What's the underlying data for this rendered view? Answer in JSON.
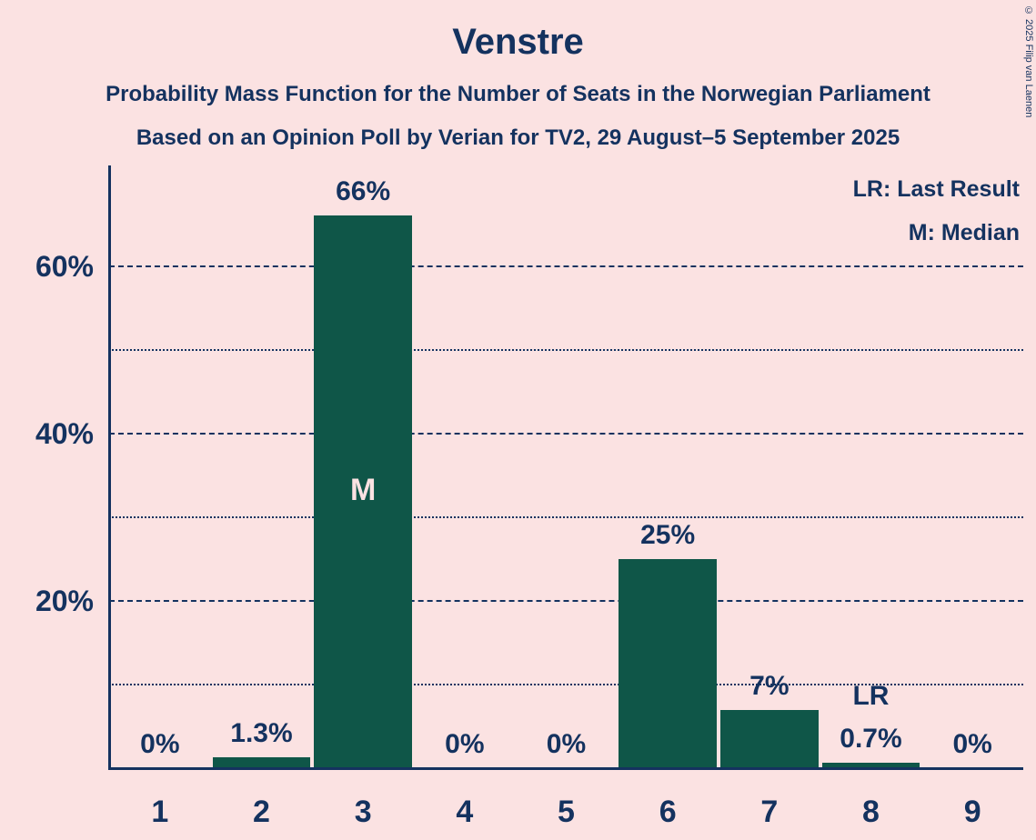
{
  "header": {
    "title": "Venstre",
    "subtitle1": "Probability Mass Function for the Number of Seats in the Norwegian Parliament",
    "subtitle2": "Based on an Opinion Poll by Verian for TV2, 29 August–5 September 2025"
  },
  "legend": {
    "lr": "LR: Last Result",
    "m": "M: Median"
  },
  "copyright": "© 2025 Filip van Laenen",
  "chart_data": {
    "type": "bar",
    "title": "Venstre",
    "categories": [
      "1",
      "2",
      "3",
      "4",
      "5",
      "6",
      "7",
      "8",
      "9"
    ],
    "values": [
      0,
      1.3,
      66,
      0,
      0,
      25,
      7,
      0.7,
      0
    ],
    "labels": [
      "0%",
      "1.3%",
      "66%",
      "0%",
      "0%",
      "25%",
      "7%",
      "0.7%",
      "0%"
    ],
    "annotations": {
      "median_index": 2,
      "median_label": "M",
      "lr_index": 7,
      "lr_label": "LR"
    },
    "xlabel": "",
    "ylabel": "",
    "ylim": [
      0,
      72
    ],
    "yticks_major": [
      20,
      40,
      60
    ],
    "yticks_minor": [
      10,
      30,
      50
    ],
    "ytick_labels": {
      "20": "20%",
      "40": "40%",
      "60": "60%"
    },
    "grid": "horizontal",
    "legend_position": "top-right",
    "colors": {
      "bar": "#0F5648",
      "text": "#14325F",
      "median_text": "#FBE2E2",
      "background": "#FBE2E2"
    }
  }
}
